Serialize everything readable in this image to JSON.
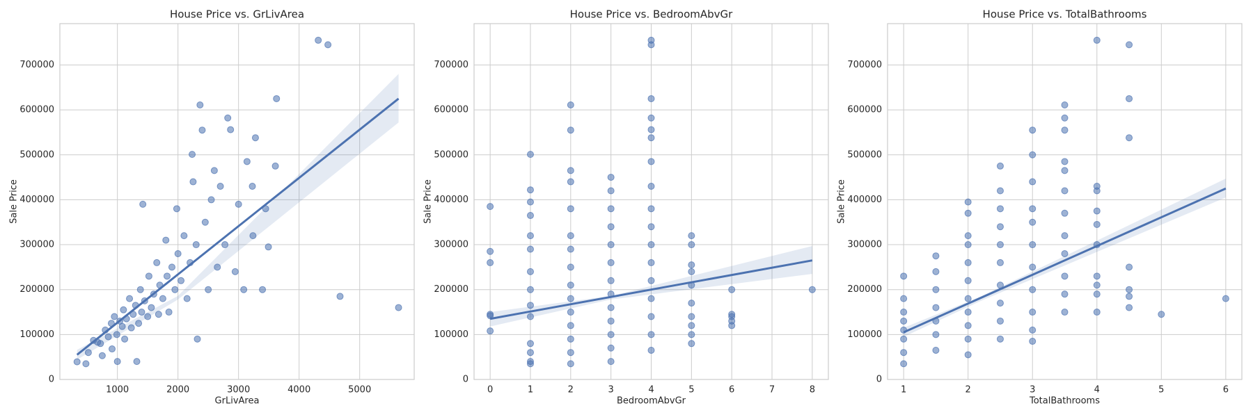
{
  "chart_data": [
    {
      "type": "scatter",
      "title": "House Price vs. GrLivArea",
      "x_label": "GrLivArea",
      "y_label": "Sale Price",
      "color": "#4c72b0",
      "grid": true,
      "xlim": [
        50,
        5900
      ],
      "ylim": [
        0,
        792000
      ],
      "xticks": [
        1000,
        2000,
        3000,
        4000,
        5000
      ],
      "yticks": [
        0,
        100000,
        200000,
        300000,
        400000,
        500000,
        600000,
        700000
      ],
      "x": [
        334,
        480,
        520,
        605,
        672,
        720,
        750,
        800,
        850,
        900,
        912,
        950,
        990,
        1000,
        1040,
        1080,
        1100,
        1120,
        1150,
        1200,
        1230,
        1260,
        1300,
        1320,
        1350,
        1380,
        1400,
        1420,
        1450,
        1500,
        1520,
        1560,
        1600,
        1650,
        1680,
        1700,
        1750,
        1800,
        1820,
        1850,
        1900,
        1950,
        1980,
        2000,
        2050,
        2100,
        2150,
        2200,
        2234,
        2250,
        2300,
        2320,
        2364,
        2400,
        2450,
        2500,
        2550,
        2600,
        2650,
        2700,
        2775,
        2822,
        2868,
        2945,
        3000,
        3086,
        3140,
        3228,
        3238,
        3279,
        3395,
        3447,
        3493,
        3608,
        3627,
        4316,
        4476,
        4676,
        5642
      ],
      "y": [
        39300,
        35000,
        60000,
        87000,
        83000,
        80000,
        53000,
        110000,
        95000,
        125000,
        68000,
        140000,
        100000,
        40000,
        130000,
        118000,
        155000,
        90000,
        135000,
        180000,
        115000,
        145000,
        165000,
        40000,
        125000,
        200000,
        150000,
        390000,
        175000,
        140000,
        230000,
        160000,
        190000,
        260000,
        145000,
        210000,
        180000,
        310000,
        230000,
        150000,
        250000,
        200000,
        380000,
        280000,
        220000,
        320000,
        180000,
        260000,
        501000,
        440000,
        300000,
        90000,
        611000,
        555000,
        350000,
        200000,
        400000,
        465000,
        250000,
        430000,
        300000,
        582000,
        556000,
        240000,
        390000,
        200000,
        485000,
        430000,
        320000,
        538000,
        200000,
        380000,
        295000,
        475000,
        625000,
        755000,
        745000,
        185000,
        160000
      ],
      "fit": {
        "x": [
          334,
          5642
        ],
        "y": [
          55000,
          625000
        ]
      },
      "ci": {
        "x": [
          334,
          2000,
          5642
        ],
        "lower": [
          44000,
          178000,
          572000
        ],
        "upper": [
          66000,
          186000,
          680000
        ]
      }
    },
    {
      "type": "scatter",
      "title": "House Price vs. BedroomAbvGr",
      "x_label": "BedroomAbvGr",
      "y_label": "Sale Price",
      "color": "#4c72b0",
      "grid": true,
      "xlim": [
        -0.4,
        8.4
      ],
      "ylim": [
        0,
        792000
      ],
      "xticks": [
        0,
        1,
        2,
        3,
        4,
        5,
        6,
        7,
        8
      ],
      "yticks": [
        0,
        100000,
        200000,
        300000,
        400000,
        500000,
        600000,
        700000
      ],
      "x": [
        0,
        0,
        0,
        0,
        0,
        0,
        1,
        1,
        1,
        1,
        1,
        1,
        1,
        1,
        1,
        1,
        1,
        1,
        1,
        1,
        2,
        2,
        2,
        2,
        2,
        2,
        2,
        2,
        2,
        2,
        2,
        2,
        2,
        2,
        2,
        3,
        3,
        3,
        3,
        3,
        3,
        3,
        3,
        3,
        3,
        3,
        3,
        3,
        4,
        4,
        4,
        4,
        4,
        4,
        4,
        4,
        4,
        4,
        4,
        4,
        4,
        4,
        4,
        4,
        4,
        5,
        5,
        5,
        5,
        5,
        5,
        5,
        5,
        5,
        5,
        6,
        6,
        6,
        6,
        6,
        8
      ],
      "y": [
        108000,
        145000,
        142000,
        260000,
        285000,
        385000,
        35000,
        40000,
        60000,
        80000,
        140000,
        165000,
        200000,
        240000,
        290000,
        320000,
        365000,
        395000,
        422000,
        501000,
        35000,
        60000,
        90000,
        120000,
        150000,
        180000,
        210000,
        250000,
        290000,
        320000,
        380000,
        440000,
        465000,
        555000,
        611000,
        40000,
        70000,
        100000,
        130000,
        160000,
        190000,
        220000,
        260000,
        300000,
        340000,
        380000,
        420000,
        450000,
        65000,
        100000,
        140000,
        180000,
        220000,
        260000,
        300000,
        340000,
        380000,
        430000,
        485000,
        538000,
        556000,
        582000,
        625000,
        745000,
        755000,
        80000,
        100000,
        120000,
        140000,
        170000,
        210000,
        240000,
        255000,
        300000,
        320000,
        120000,
        130000,
        140000,
        145000,
        200000,
        200000
      ],
      "fit": {
        "x": [
          0,
          8
        ],
        "y": [
          135000,
          265000
        ]
      },
      "ci": {
        "x": [
          0,
          3,
          8
        ],
        "lower": [
          118000,
          178000,
          235000
        ],
        "upper": [
          150000,
          186000,
          297000
        ]
      }
    },
    {
      "type": "scatter",
      "title": "House Price vs. TotalBathrooms",
      "x_label": "TotalBathrooms",
      "y_label": "Sale Price",
      "color": "#4c72b0",
      "grid": true,
      "xlim": [
        0.75,
        6.25
      ],
      "ylim": [
        0,
        792000
      ],
      "xticks": [
        1,
        2,
        3,
        4,
        5,
        6
      ],
      "yticks": [
        0,
        100000,
        200000,
        300000,
        400000,
        500000,
        600000,
        700000
      ],
      "x": [
        1,
        1,
        1,
        1,
        1,
        1,
        1,
        1,
        1.5,
        1.5,
        1.5,
        1.5,
        1.5,
        1.5,
        1.5,
        2,
        2,
        2,
        2,
        2,
        2,
        2,
        2,
        2,
        2,
        2,
        2.5,
        2.5,
        2.5,
        2.5,
        2.5,
        2.5,
        2.5,
        2.5,
        2.5,
        2.5,
        3,
        3,
        3,
        3,
        3,
        3,
        3,
        3,
        3,
        3,
        3,
        3.5,
        3.5,
        3.5,
        3.5,
        3.5,
        3.5,
        3.5,
        3.5,
        3.5,
        3.5,
        3.5,
        3.5,
        4,
        4,
        4,
        4,
        4,
        4,
        4,
        4,
        4,
        4,
        4.5,
        4.5,
        4.5,
        4.5,
        4.5,
        4.5,
        4.5,
        5,
        6
      ],
      "y": [
        35000,
        60000,
        90000,
        110000,
        130000,
        150000,
        180000,
        230000,
        65000,
        100000,
        130000,
        160000,
        200000,
        240000,
        275000,
        55000,
        90000,
        120000,
        150000,
        180000,
        220000,
        260000,
        300000,
        320000,
        370000,
        395000,
        90000,
        130000,
        170000,
        210000,
        260000,
        300000,
        340000,
        380000,
        420000,
        475000,
        85000,
        110000,
        150000,
        200000,
        250000,
        300000,
        350000,
        380000,
        440000,
        500000,
        555000,
        150000,
        190000,
        230000,
        280000,
        320000,
        370000,
        420000,
        465000,
        485000,
        555000,
        582000,
        611000,
        150000,
        190000,
        210000,
        230000,
        300000,
        345000,
        375000,
        420000,
        430000,
        755000,
        160000,
        185000,
        200000,
        250000,
        538000,
        625000,
        745000,
        145000,
        180000
      ],
      "fit": {
        "x": [
          1,
          6
        ],
        "y": [
          105000,
          425000
        ]
      },
      "ci": {
        "x": [
          1,
          2.2,
          6
        ],
        "lower": [
          95000,
          175000,
          405000
        ],
        "upper": [
          115000,
          185000,
          447000
        ]
      }
    }
  ]
}
